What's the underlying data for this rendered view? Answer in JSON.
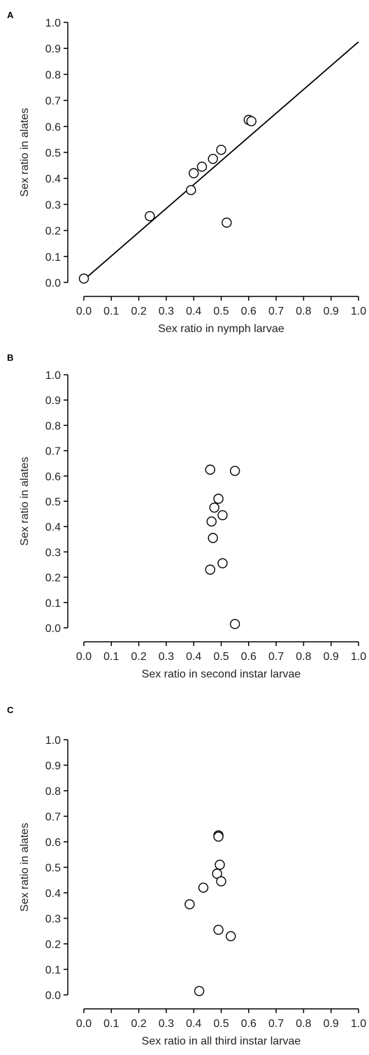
{
  "chart_data": [
    {
      "type": "scatter",
      "panel_label": "A",
      "xlabel": "Sex ratio in nymph larvae",
      "ylabel": "Sex ratio in alates",
      "xlim": [
        0,
        1
      ],
      "ylim": [
        0,
        1
      ],
      "ticks": [
        "0.0",
        "0.1",
        "0.2",
        "0.3",
        "0.4",
        "0.5",
        "0.6",
        "0.7",
        "0.8",
        "0.9",
        "1.0"
      ],
      "grid": false,
      "points": [
        {
          "x": 0.0,
          "y": 0.015
        },
        {
          "x": 0.24,
          "y": 0.255
        },
        {
          "x": 0.39,
          "y": 0.355
        },
        {
          "x": 0.4,
          "y": 0.42
        },
        {
          "x": 0.43,
          "y": 0.445
        },
        {
          "x": 0.47,
          "y": 0.475
        },
        {
          "x": 0.5,
          "y": 0.51
        },
        {
          "x": 0.52,
          "y": 0.23
        },
        {
          "x": 0.6,
          "y": 0.625
        },
        {
          "x": 0.61,
          "y": 0.62
        }
      ],
      "fit_line": {
        "x": [
          0.0,
          1.0
        ],
        "y": [
          0.01,
          0.925
        ]
      }
    },
    {
      "type": "scatter",
      "panel_label": "B",
      "xlabel": "Sex ratio in second instar larvae",
      "ylabel": "Sex ratio in alates",
      "xlim": [
        0,
        1
      ],
      "ylim": [
        0,
        1
      ],
      "ticks": [
        "0.0",
        "0.1",
        "0.2",
        "0.3",
        "0.4",
        "0.5",
        "0.6",
        "0.7",
        "0.8",
        "0.9",
        "1.0"
      ],
      "grid": false,
      "points": [
        {
          "x": 0.46,
          "y": 0.625
        },
        {
          "x": 0.55,
          "y": 0.62
        },
        {
          "x": 0.49,
          "y": 0.51
        },
        {
          "x": 0.475,
          "y": 0.475
        },
        {
          "x": 0.505,
          "y": 0.445
        },
        {
          "x": 0.465,
          "y": 0.42
        },
        {
          "x": 0.47,
          "y": 0.355
        },
        {
          "x": 0.505,
          "y": 0.255
        },
        {
          "x": 0.46,
          "y": 0.23
        },
        {
          "x": 0.55,
          "y": 0.015
        }
      ]
    },
    {
      "type": "scatter",
      "panel_label": "C",
      "xlabel": "Sex ratio in all third instar larvae",
      "ylabel": "Sex ratio in alates",
      "xlim": [
        0,
        1
      ],
      "ylim": [
        0,
        1
      ],
      "ticks": [
        "0.0",
        "0.1",
        "0.2",
        "0.3",
        "0.4",
        "0.5",
        "0.6",
        "0.7",
        "0.8",
        "0.9",
        "1.0"
      ],
      "grid": false,
      "points": [
        {
          "x": 0.49,
          "y": 0.625
        },
        {
          "x": 0.49,
          "y": 0.62
        },
        {
          "x": 0.495,
          "y": 0.51
        },
        {
          "x": 0.485,
          "y": 0.475
        },
        {
          "x": 0.5,
          "y": 0.445
        },
        {
          "x": 0.435,
          "y": 0.42
        },
        {
          "x": 0.385,
          "y": 0.355
        },
        {
          "x": 0.49,
          "y": 0.255
        },
        {
          "x": 0.535,
          "y": 0.23
        },
        {
          "x": 0.42,
          "y": 0.015
        }
      ]
    }
  ]
}
